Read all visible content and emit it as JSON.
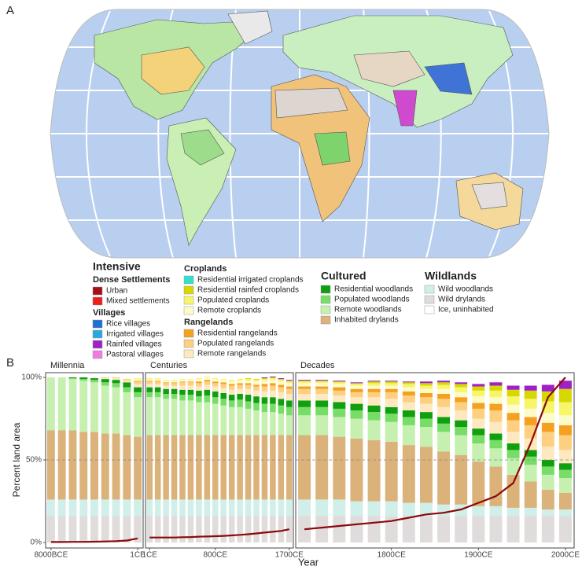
{
  "panel_a": {
    "label": "A",
    "legend": {
      "columns": [
        {
          "title": "Intensive",
          "groups": [
            {
              "title": "Dense Settlements",
              "items": [
                {
                  "name": "Urban",
                  "color": "#a50f15"
                },
                {
                  "name": "Mixed settlements",
                  "color": "#ee1c1c"
                }
              ]
            },
            {
              "title": "Villages",
              "items": [
                {
                  "name": "Rice villages",
                  "color": "#1f6fd6"
                },
                {
                  "name": "Irrigated villages",
                  "color": "#29a8e0"
                },
                {
                  "name": "Rainfed villages",
                  "color": "#a020c8"
                },
                {
                  "name": "Pastoral villages",
                  "color": "#f07ce0"
                }
              ]
            }
          ]
        },
        {
          "groups": [
            {
              "title": "Croplands",
              "items": [
                {
                  "name": "Residential irrigated croplands",
                  "color": "#33e0c8"
                },
                {
                  "name": "Residential rainfed croplands",
                  "color": "#d8d800"
                },
                {
                  "name": "Populated croplands",
                  "color": "#f7f56a"
                },
                {
                  "name": "Remote croplands",
                  "color": "#fdfcc8"
                }
              ]
            },
            {
              "title": "Rangelands",
              "items": [
                {
                  "name": "Residential rangelands",
                  "color": "#f5a020"
                },
                {
                  "name": "Populated rangelands",
                  "color": "#fcd080"
                },
                {
                  "name": "Remote rangelands",
                  "color": "#fde8c0"
                }
              ]
            }
          ]
        },
        {
          "title": "Cultured",
          "groups": [
            {
              "items": [
                {
                  "name": "Residential woodlands",
                  "color": "#0f9f0f"
                },
                {
                  "name": "Populated woodlands",
                  "color": "#77dd66"
                },
                {
                  "name": "Remote woodlands",
                  "color": "#c6f0b0"
                },
                {
                  "name": "Inhabited drylands",
                  "color": "#dbb27a"
                }
              ]
            }
          ]
        },
        {
          "title": "Wildlands",
          "groups": [
            {
              "items": [
                {
                  "name": "Wild woodlands",
                  "color": "#d0efe8"
                },
                {
                  "name": "Wild drylands",
                  "color": "#e0dcdc"
                },
                {
                  "name": "Ice, uninhabited",
                  "color": "#ffffff"
                }
              ]
            }
          ]
        }
      ]
    }
  },
  "panel_b": {
    "label": "B",
    "ylabel": "Percent land area",
    "xlabel": "Year"
  },
  "chart_data": [
    {
      "type": "stacked_bar",
      "title": "Millennia",
      "ylim": [
        0,
        100
      ],
      "yticks": [
        {
          "value": 0,
          "label": "0%"
        },
        {
          "value": 50,
          "label": "50%"
        },
        {
          "value": 100,
          "label": "100%"
        }
      ],
      "grid": "dashed",
      "categories": [
        "8000BCE",
        null,
        null,
        null,
        null,
        null,
        null,
        null,
        "1CE"
      ],
      "series": [
        {
          "color": "#e0dcdc",
          "values": [
            16,
            16,
            16,
            16,
            16,
            16,
            16,
            16,
            16
          ]
        },
        {
          "color": "#d0efe8",
          "values": [
            10,
            10,
            10,
            10,
            10,
            10,
            10,
            10,
            10
          ]
        },
        {
          "color": "#dbb27a",
          "values": [
            42,
            42,
            42,
            41,
            41,
            40,
            40,
            39,
            38
          ]
        },
        {
          "color": "#c6f0b0",
          "values": [
            32,
            32,
            31,
            31,
            30,
            29,
            28,
            26,
            24
          ]
        },
        {
          "color": "#77dd66",
          "values": [
            0,
            0,
            0.5,
            1,
            1.5,
            2,
            2.5,
            3,
            3
          ]
        },
        {
          "color": "#0f9f0f",
          "values": [
            0,
            0,
            0.5,
            1,
            1,
            2,
            2,
            3,
            3
          ]
        },
        {
          "color": "#fde8c0",
          "values": [
            0,
            0,
            0,
            0,
            0.5,
            0.5,
            1,
            1,
            2
          ]
        },
        {
          "color": "#fcd080",
          "values": [
            0,
            0,
            0,
            0,
            0,
            0.5,
            0.5,
            1,
            1.5
          ]
        },
        {
          "color": "#f5a020",
          "values": [
            0,
            0,
            0,
            0,
            0,
            0,
            0,
            0,
            0.5
          ]
        },
        {
          "color": "#fdfcc8",
          "values": [
            0,
            0,
            0,
            0,
            0,
            0,
            0,
            0.5,
            1
          ]
        },
        {
          "color": "#f7f56a",
          "values": [
            0,
            0,
            0,
            0,
            0,
            0,
            0,
            0,
            0.5
          ]
        },
        {
          "color": "#d8d800",
          "values": [
            0,
            0,
            0,
            0,
            0,
            0,
            0,
            0,
            0
          ]
        },
        {
          "color": "#a020c8",
          "values": [
            0,
            0,
            0,
            0,
            0,
            0,
            0,
            0,
            0
          ]
        }
      ],
      "line": {
        "color": "#8b0a0a",
        "values": [
          0.3,
          0.3,
          0.4,
          0.4,
          0.5,
          0.6,
          0.8,
          1.2,
          2.5
        ]
      }
    },
    {
      "type": "stacked_bar",
      "title": "Centuries",
      "ylim": [
        0,
        100
      ],
      "yticks": [
        50
      ],
      "grid": "dashed",
      "categories": [
        "1CE",
        null,
        null,
        null,
        null,
        null,
        null,
        null,
        "800CE",
        null,
        null,
        null,
        null,
        null,
        null,
        null,
        null,
        "1700CE"
      ],
      "series": [
        {
          "color": "#e0dcdc",
          "values": [
            16,
            16,
            16,
            16,
            16,
            16,
            16,
            16,
            16,
            16,
            16,
            16,
            16,
            16,
            16,
            16,
            16,
            16
          ]
        },
        {
          "color": "#d0efe8",
          "values": [
            10,
            10,
            10,
            10,
            10,
            10,
            10,
            10,
            10,
            10,
            10,
            10,
            10,
            10,
            10,
            10,
            10,
            10
          ]
        },
        {
          "color": "#dbb27a",
          "values": [
            39,
            39,
            39,
            39,
            39,
            39,
            39,
            39,
            39,
            39,
            39,
            39,
            39,
            39,
            39,
            39,
            39,
            39
          ]
        },
        {
          "color": "#c6f0b0",
          "values": [
            23,
            23,
            22,
            22,
            21,
            21,
            20,
            20,
            19,
            18,
            17,
            17,
            16,
            15,
            14,
            14,
            13,
            12
          ]
        },
        {
          "color": "#77dd66",
          "values": [
            3,
            3,
            3,
            3,
            3.5,
            3.5,
            3.5,
            4,
            4,
            4,
            4,
            4.5,
            4.5,
            4.5,
            5,
            5,
            5,
            5
          ]
        },
        {
          "color": "#0f9f0f",
          "values": [
            3,
            3,
            3,
            3,
            3,
            3,
            3.5,
            3.5,
            3.5,
            3.5,
            3.5,
            3.5,
            4,
            4,
            4,
            4,
            4,
            4
          ]
        },
        {
          "color": "#fde8c0",
          "values": [
            2,
            2,
            2,
            2,
            2.5,
            2.5,
            2.5,
            3,
            3,
            3,
            3,
            3,
            3.5,
            3.5,
            3.5,
            4,
            4,
            4
          ]
        },
        {
          "color": "#fcd080",
          "values": [
            1.5,
            1.5,
            1.5,
            1.5,
            2,
            2,
            2,
            2,
            2,
            2.5,
            2.5,
            2.5,
            2.5,
            2.5,
            3,
            3,
            3,
            3
          ]
        },
        {
          "color": "#f5a020",
          "values": [
            0.5,
            0.5,
            0.5,
            0.5,
            0.5,
            0.5,
            1,
            1,
            1,
            1,
            1,
            1,
            1,
            1,
            1.5,
            1.5,
            1.5,
            1.5
          ]
        },
        {
          "color": "#fdfcc8",
          "values": [
            1,
            1,
            1,
            1,
            1,
            1,
            1.5,
            1.5,
            1.5,
            1.5,
            1.5,
            1.5,
            1.5,
            2,
            2,
            2,
            2,
            2
          ]
        },
        {
          "color": "#f7f56a",
          "values": [
            0.5,
            0.5,
            0.5,
            0.5,
            0.5,
            0.5,
            0.5,
            0.5,
            0.5,
            0.5,
            1,
            1,
            1,
            1,
            1,
            1,
            1,
            1
          ]
        },
        {
          "color": "#d8d800",
          "values": [
            0,
            0,
            0,
            0,
            0,
            0,
            0,
            0,
            0,
            0,
            0,
            0,
            0.5,
            0.5,
            0.5,
            0.5,
            0.5,
            0.5
          ]
        },
        {
          "color": "#a020c8",
          "values": [
            0,
            0,
            0,
            0,
            0,
            0,
            0,
            0,
            0,
            0,
            0,
            0,
            0,
            0,
            0.5,
            0.5,
            0.5,
            0.5
          ]
        }
      ],
      "line": {
        "color": "#8b0a0a",
        "values": [
          3,
          3,
          3,
          3,
          3.2,
          3.3,
          3.5,
          3.6,
          3.8,
          4,
          4.3,
          4.6,
          5,
          5.5,
          6,
          6.5,
          7,
          8
        ]
      }
    },
    {
      "type": "stacked_bar",
      "title": "Decades",
      "ylim": [
        0,
        100
      ],
      "yticks": [
        50
      ],
      "grid": "dashed",
      "categories": [
        null,
        null,
        null,
        null,
        null,
        "1800CE",
        null,
        null,
        null,
        null,
        "1900CE",
        null,
        null,
        null,
        null,
        "2000CE"
      ],
      "series": [
        {
          "color": "#e0dcdc",
          "values": [
            16,
            16,
            16,
            16,
            16,
            16,
            16,
            16,
            16,
            16,
            16,
            16,
            16,
            16,
            16,
            16
          ]
        },
        {
          "color": "#d0efe8",
          "values": [
            10,
            10,
            10,
            9,
            9,
            9,
            8,
            8,
            7,
            7,
            6,
            6,
            5,
            5,
            4,
            4
          ]
        },
        {
          "color": "#dbb27a",
          "values": [
            39,
            39,
            38,
            38,
            37,
            36,
            35,
            34,
            32,
            30,
            27,
            24,
            20,
            16,
            12,
            10
          ]
        },
        {
          "color": "#c6f0b0",
          "values": [
            12,
            12,
            12,
            12,
            12,
            12,
            12,
            12,
            12,
            12,
            11,
            11,
            10,
            10,
            9,
            9
          ]
        },
        {
          "color": "#77dd66",
          "values": [
            5,
            5,
            5,
            5,
            5,
            5,
            5,
            5,
            5,
            5,
            5,
            5,
            5,
            5,
            5,
            5
          ]
        },
        {
          "color": "#0f9f0f",
          "values": [
            4,
            4,
            4,
            4,
            4,
            4,
            4,
            4,
            4,
            4,
            4,
            4,
            4,
            4,
            4,
            4
          ]
        },
        {
          "color": "#fde8c0",
          "values": [
            4,
            4,
            4,
            4,
            5,
            5,
            5,
            5,
            6,
            6,
            6,
            7,
            7,
            7,
            8,
            8
          ]
        },
        {
          "color": "#fcd080",
          "values": [
            3,
            3,
            3,
            3,
            3,
            4,
            4,
            4,
            5,
            5,
            6,
            7,
            7,
            8,
            9,
            9
          ]
        },
        {
          "color": "#f5a020",
          "values": [
            1.5,
            1.5,
            2,
            2,
            2,
            2,
            2.5,
            2.5,
            3,
            3,
            3.5,
            4,
            4.5,
            5,
            5.5,
            6
          ]
        },
        {
          "color": "#fdfcc8",
          "values": [
            2,
            2,
            2,
            2,
            2,
            2,
            2.5,
            2.5,
            3,
            3,
            4,
            4,
            5,
            5,
            6,
            6
          ]
        },
        {
          "color": "#f7f56a",
          "values": [
            1,
            1,
            1,
            1,
            1.5,
            1.5,
            2,
            2,
            2.5,
            3,
            3.5,
            4,
            5,
            6,
            7,
            8
          ]
        },
        {
          "color": "#d8d800",
          "values": [
            0.5,
            0.5,
            0.5,
            0.5,
            1,
            1,
            1,
            1.5,
            1.5,
            2,
            2.5,
            3,
            4,
            5,
            6,
            8
          ]
        },
        {
          "color": "#a020c8",
          "values": [
            0.5,
            0.5,
            0.5,
            0.5,
            0.5,
            0.5,
            0.5,
            1,
            1,
            1,
            1.5,
            2,
            2.5,
            3,
            4,
            5
          ]
        }
      ],
      "line": {
        "color": "#8b0a0a",
        "values": [
          8,
          9,
          10,
          11,
          12,
          13,
          15,
          17,
          18,
          20,
          24,
          28,
          36,
          60,
          88,
          100
        ]
      }
    }
  ]
}
